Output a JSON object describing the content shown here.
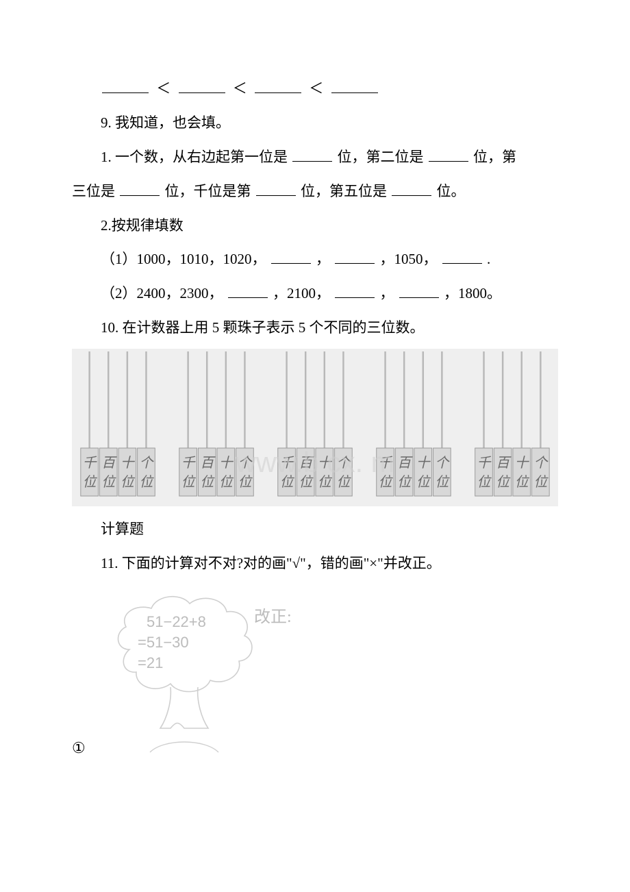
{
  "lines": {
    "q9": "9. 我知道，也会填。",
    "q9_1a": "1. 一个数，从右边起第一位是",
    "q9_1b": "位，第二位是",
    "q9_1c": "位，第",
    "q9_1d": "三位是",
    "q9_1e": "位，千位是第",
    "q9_1f": "位，第五位是",
    "q9_1g": "位。",
    "q9_2": "2.按规律填数",
    "seq1a": "（1）1000，1010，1020，",
    "seq1b": "，",
    "seq1c": "，1050，",
    "seq1d": ".",
    "seq2a": "（2）2400，2300，",
    "seq2b": "，2100，",
    "seq2c": "，",
    "seq2d": "，1800。",
    "q10": "10. 在计数器上用 5 颗珠子表示 5 个不同的三位数。",
    "calc_title": "计算题",
    "q11": "11. 下面的计算对不对?对的画\"√\"，错的画\"×\"并改正。",
    "circled1": "①"
  },
  "lt": "＜",
  "abacus": {
    "bg_color": "#efefef",
    "rod_color": "#b8b8b8",
    "box_fill": "#d8d8d8",
    "box_stroke": "#9a9a9a",
    "label_color": "#6a6a6a",
    "watermark_color": "#d0d0d0",
    "watermark_text": "www.b cx.  m",
    "place_labels": [
      "千位",
      "百位",
      "十位",
      "个位"
    ],
    "groups": 5
  },
  "tree": {
    "stroke": "#cfcfcf",
    "text_color": "#bcbcbc",
    "line1": "51−22+8",
    "line2": "=51−30",
    "line3": "=21",
    "label": "改正:"
  }
}
